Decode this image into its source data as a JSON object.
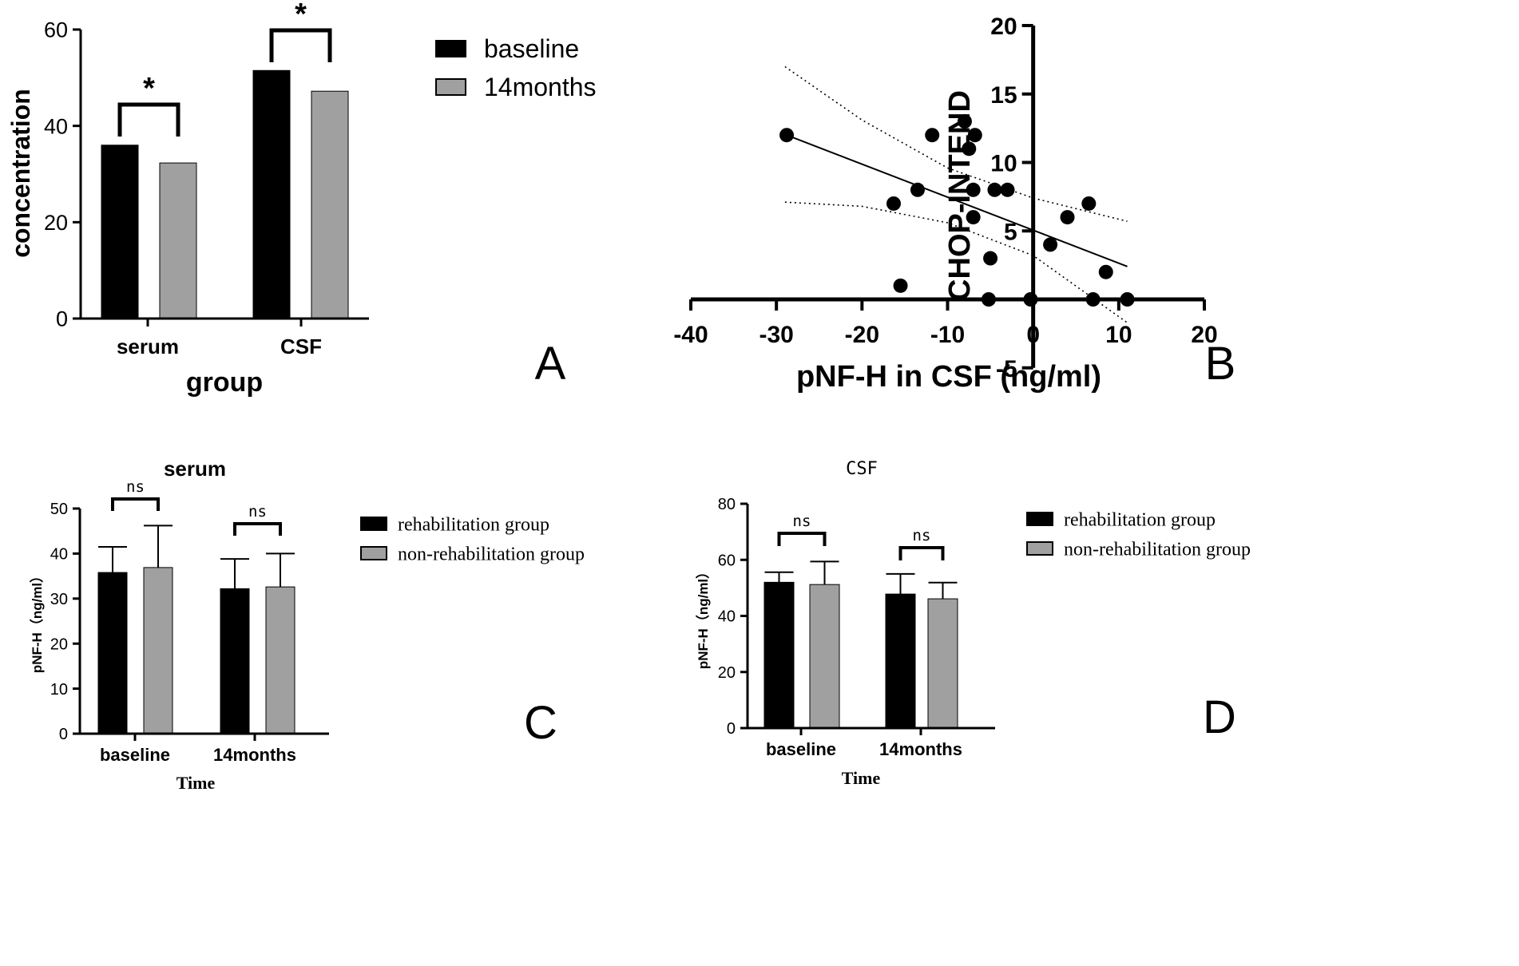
{
  "colors": {
    "dark": "#000000",
    "gray": "#a0a0a0",
    "white": "#ffffff"
  },
  "chart_data": [
    {
      "panel": "A",
      "type": "bar",
      "title": "",
      "xlabel": "group",
      "ylabel": "concentration",
      "ylim": [
        0,
        60
      ],
      "yticks": [
        "0",
        "20",
        "40",
        "60"
      ],
      "categories": [
        "serum",
        "CSF"
      ],
      "series": [
        {
          "name": "baseline",
          "values": [
            36,
            51.5
          ]
        },
        {
          "name": "14months",
          "values": [
            32.3,
            47.2
          ]
        }
      ],
      "significance": [
        "*",
        "*"
      ],
      "panel_label": "A",
      "legend_position": "right"
    },
    {
      "panel": "B",
      "type": "scatter",
      "xlabel": "pNF-H in CSF (ng/ml)",
      "ylabel": "CHOP-INTEND",
      "xlim": [
        -40,
        20
      ],
      "ylim": [
        -5,
        20
      ],
      "xticks": [
        "-40",
        "-30",
        "-20",
        "-10",
        "0",
        "10",
        "20"
      ],
      "yticks": [
        "-5",
        "5",
        "10",
        "15",
        "20"
      ],
      "points": [
        [
          -28.8,
          12
        ],
        [
          -16.3,
          7
        ],
        [
          -15.5,
          1
        ],
        [
          -13.5,
          8
        ],
        [
          -11.8,
          12
        ],
        [
          -8,
          13
        ],
        [
          -7.5,
          11
        ],
        [
          -7,
          8
        ],
        [
          -7,
          6
        ],
        [
          -6.8,
          12
        ],
        [
          -5.2,
          0
        ],
        [
          -5,
          3
        ],
        [
          -4.5,
          8
        ],
        [
          -3,
          8
        ],
        [
          -0.3,
          0
        ],
        [
          2,
          4
        ],
        [
          4,
          6
        ],
        [
          6.5,
          7
        ],
        [
          7,
          0
        ],
        [
          8.5,
          2
        ],
        [
          11,
          0
        ]
      ],
      "fit_line": {
        "x": [
          -28.8,
          11
        ],
        "y": [
          12,
          2.4
        ]
      },
      "ci_upper": {
        "x": [
          -29,
          -20,
          -10,
          0,
          11
        ],
        "y": [
          17,
          13.1,
          9.6,
          7.4,
          5.7
        ]
      },
      "ci_lower": {
        "x": [
          -29,
          -20,
          -10,
          0,
          11
        ],
        "y": [
          7.1,
          6.8,
          5.6,
          3.2,
          -1.7
        ]
      },
      "panel_label": "B"
    },
    {
      "panel": "C",
      "type": "bar",
      "title": "serum",
      "xlabel": "Time",
      "ylabel": "pNF-H（ng/ml）",
      "ylim": [
        0,
        50
      ],
      "yticks": [
        "0",
        "10",
        "20",
        "30",
        "40",
        "50"
      ],
      "categories": [
        "baseline",
        "14months"
      ],
      "series": [
        {
          "name": "rehabilitation group",
          "values": [
            35.8,
            32.2
          ],
          "errors": [
            5.7,
            6.6
          ]
        },
        {
          "name": "non-rehabilitation group",
          "values": [
            36.9,
            32.6
          ],
          "errors": [
            9.3,
            7.4
          ]
        }
      ],
      "significance": [
        "ns",
        "ns"
      ],
      "panel_label": "C",
      "legend_position": "right"
    },
    {
      "panel": "D",
      "type": "bar",
      "title": "CSF",
      "xlabel": "Time",
      "ylabel": "pNF-H（ng/ml）",
      "ylim": [
        0,
        80
      ],
      "yticks": [
        "0",
        "20",
        "40",
        "60",
        "80"
      ],
      "categories": [
        "baseline",
        "14months"
      ],
      "series": [
        {
          "name": "rehabilitation group",
          "values": [
            52,
            47.8
          ],
          "errors": [
            3.6,
            7.2
          ]
        },
        {
          "name": "non-rehabilitation group",
          "values": [
            51.2,
            46.1
          ],
          "errors": [
            8.2,
            5.8
          ]
        }
      ],
      "significance": [
        "ns",
        "ns"
      ],
      "panel_label": "D",
      "legend_position": "right"
    }
  ]
}
